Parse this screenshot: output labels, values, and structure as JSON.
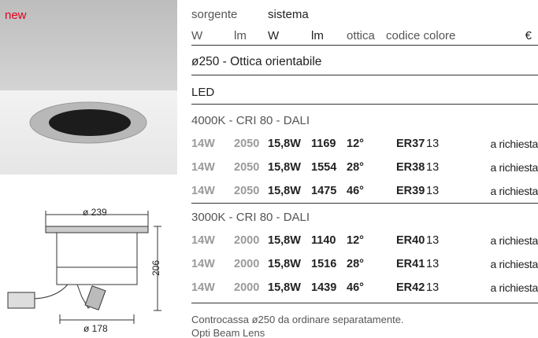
{
  "badge": "new",
  "drawing": {
    "top_diameter": "ø 239",
    "height": "206",
    "bottom_diameter": "ø 178"
  },
  "header": {
    "group_source": "sorgente",
    "group_system": "sistema",
    "columns": [
      "W",
      "lm",
      "W",
      "lm",
      "ottica",
      "codice colore",
      "€"
    ]
  },
  "section_title": "ø250 - Ottica orientabile",
  "subsection": "LED",
  "groups": [
    {
      "label": "4000K - CRI 80 - DALI",
      "rows": [
        [
          "14W",
          "2050",
          "15,8W",
          "1169",
          "12°",
          "ER37",
          "13",
          "a richiesta"
        ],
        [
          "14W",
          "2050",
          "15,8W",
          "1554",
          "28°",
          "ER38",
          "13",
          "a richiesta"
        ],
        [
          "14W",
          "2050",
          "15,8W",
          "1475",
          "46°",
          "ER39",
          "13",
          "a richiesta"
        ]
      ]
    },
    {
      "label": "3000K - CRI 80 - DALI",
      "rows": [
        [
          "14W",
          "2000",
          "15,8W",
          "1140",
          "12°",
          "ER40",
          "13",
          "a richiesta"
        ],
        [
          "14W",
          "2000",
          "15,8W",
          "1516",
          "28°",
          "ER41",
          "13",
          "a richiesta"
        ],
        [
          "14W",
          "2000",
          "15,8W",
          "1439",
          "46°",
          "ER42",
          "13",
          "a richiesta"
        ]
      ]
    }
  ],
  "notes": [
    "Controcassa ø250 da ordinare separatamente.",
    "Opti Beam Lens"
  ]
}
